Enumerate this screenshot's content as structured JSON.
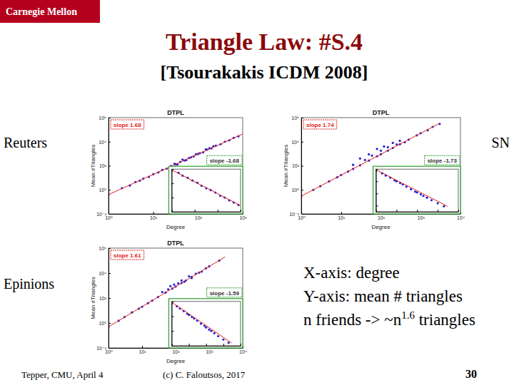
{
  "slide": {
    "logo": "Carnegie Mellon",
    "title": "Triangle Law: #S.4",
    "subtitle": "[Tsourakakis ICDM 2008]",
    "notes": [
      "X-axis: degree",
      "Y-axis: mean # triangles"
    ],
    "formula": {
      "text": "n friends -> ~n",
      "exponent": "1.6",
      "tail": " triangles"
    },
    "footer": {
      "left": "Tepper, CMU, April 4",
      "center": "(c) C. Faloutsos, 2017",
      "page": 30
    }
  },
  "chart_data": [
    {
      "type": "scatter",
      "panel_label": "Reuters",
      "title": "DTPL",
      "xlabel": "Degree",
      "ylabel": "Mean #Triangles",
      "log": true,
      "xlim": [
        1,
        1000
      ],
      "ylim": [
        0.01,
        1000000
      ],
      "xticks": [
        {
          "value": 1,
          "label": "10⁰"
        },
        {
          "value": 10,
          "label": "10¹"
        },
        {
          "value": 100,
          "label": "10²"
        },
        {
          "value": 1000,
          "label": "10³"
        }
      ],
      "yticks": [
        {
          "value": 0.01,
          "label": "10⁻²"
        },
        {
          "value": 1,
          "label": "10⁰"
        },
        {
          "value": 100,
          "label": "10²"
        },
        {
          "value": 10000,
          "label": "10⁴"
        },
        {
          "value": 1000000,
          "label": "10⁶"
        }
      ],
      "annotations": [
        {
          "text": "slope 1.68",
          "color": "#e02020"
        }
      ],
      "series": [
        {
          "type": "scatter",
          "marker": "dot",
          "color": "#2020d0",
          "x": [
            1,
            2,
            3,
            4,
            5,
            6,
            8,
            10,
            13,
            16,
            20,
            25,
            32,
            40,
            50,
            63,
            80,
            100,
            130,
            160,
            200,
            250,
            320,
            400,
            500,
            630,
            800,
            30,
            35,
            45,
            55,
            70,
            90,
            110,
            150,
            180,
            220
          ],
          "values": [
            0.4,
            1.4,
            2.3,
            4.5,
            5.8,
            8.5,
            12,
            20,
            28,
            45,
            58,
            95,
            130,
            210,
            270,
            440,
            600,
            960,
            1300,
            2200,
            2800,
            4600,
            6200,
            10000,
            13000,
            21000,
            28000,
            150,
            130,
            330,
            300,
            500,
            900,
            1100,
            2300,
            2900,
            4200
          ]
        },
        {
          "type": "line",
          "line_style": "solid",
          "color": "#e02020",
          "x": [
            1,
            1000
          ],
          "values": [
            0.4,
            43900
          ]
        }
      ],
      "inset": {
        "type": "scatter",
        "log": true,
        "tick_labels": false,
        "xlim": [
          1,
          1000
        ],
        "ylim": [
          1e-06,
          1
        ],
        "xticks": [
          1,
          10,
          100,
          1000
        ],
        "yticks": [
          1e-06,
          0.0001,
          0.01,
          1
        ],
        "annotations": [
          {
            "text": "slope -1.68",
            "color": "#2ca02c"
          }
        ],
        "series": [
          {
            "type": "scatter",
            "marker": "dot",
            "color": "#2020d0",
            "x": [
              1,
              2,
              3,
              5,
              8,
              13,
              20,
              32,
              50,
              80,
              130,
              200,
              320,
              500,
              800
            ],
            "values": [
              0.6,
              0.3,
              0.12,
              0.06,
              0.025,
              0.012,
              0.0045,
              0.002,
              0.0011,
              0.0005,
              0.00018,
              0.0001,
              4e-05,
              2e-05,
              9e-06
            ]
          },
          {
            "type": "line",
            "line_style": "solid",
            "color": "#e02020",
            "x": [
              1,
              1000
            ],
            "values": [
              0.8,
              7.3e-06
            ]
          }
        ]
      }
    },
    {
      "type": "scatter",
      "panel_label": "SN",
      "title": "DTPL",
      "xlabel": "Degree",
      "ylabel": "Mean #Triangles",
      "log": true,
      "xlim": [
        1,
        10000
      ],
      "ylim": [
        0.01,
        1000000
      ],
      "xticks": [
        {
          "value": 1,
          "label": "10⁰"
        },
        {
          "value": 10,
          "label": "10¹"
        },
        {
          "value": 100,
          "label": "10²"
        },
        {
          "value": 1000,
          "label": "10³"
        },
        {
          "value": 10000,
          "label": "10⁴"
        }
      ],
      "yticks": [
        {
          "value": 0.01,
          "label": "10⁻²"
        },
        {
          "value": 1,
          "label": "10⁰"
        },
        {
          "value": 100,
          "label": "10²"
        },
        {
          "value": 10000,
          "label": "10⁴"
        },
        {
          "value": 1000000,
          "label": "10⁶"
        }
      ],
      "annotations": [
        {
          "text": "slope 1.74",
          "color": "#e02020"
        }
      ],
      "series": [
        {
          "type": "scatter",
          "marker": "dot",
          "color": "#2020d0",
          "x": [
            1,
            2,
            3,
            5,
            8,
            10,
            15,
            20,
            30,
            50,
            80,
            100,
            150,
            200,
            300,
            500,
            800,
            1000,
            1500,
            2000,
            3000,
            20,
            30,
            40,
            50,
            60,
            80,
            100,
            120,
            150,
            200,
            250,
            300,
            400
          ],
          "values": [
            0.3,
            1,
            2,
            5,
            11,
            17,
            33,
            55,
            110,
            270,
            610,
            900,
            1800,
            3000,
            6100,
            15000,
            34000,
            50000,
            90000,
            170000,
            300000,
            120,
            400,
            300,
            900,
            700,
            2500,
            1800,
            4000,
            3500,
            8000,
            6000,
            12000,
            9000
          ]
        },
        {
          "type": "line",
          "line_style": "solid",
          "color": "#e02020",
          "x": [
            1,
            3000
          ],
          "values": [
            0.3,
            340000
          ]
        }
      ],
      "inset": {
        "type": "scatter",
        "log": true,
        "tick_labels": false,
        "xlim": [
          1,
          10000
        ],
        "ylim": [
          1e-07,
          1
        ],
        "xticks": [
          1,
          10,
          100,
          1000,
          10000
        ],
        "yticks": [
          1e-06,
          0.0001,
          0.01,
          1
        ],
        "annotations": [
          {
            "text": "slope -1.73",
            "color": "#2ca02c"
          }
        ],
        "series": [
          {
            "type": "scatter",
            "marker": "dot",
            "color": "#2020d0",
            "x": [
              1,
              2,
              3,
              5,
              8,
              10,
              15,
              20,
              30,
              50,
              80,
              100,
              150,
              200,
              300,
              500,
              1000,
              2000
            ],
            "values": [
              0.5,
              0.2,
              0.09,
              0.04,
              0.015,
              0.01,
              0.005,
              0.003,
              0.0013,
              0.0005,
              0.0002,
              0.00015,
              7e-05,
              4e-05,
              2e-05,
              8e-06,
              2.5e-06,
              8e-07
            ]
          },
          {
            "type": "line",
            "line_style": "solid",
            "color": "#e02020",
            "x": [
              1,
              3000
            ],
            "values": [
              0.8,
              7.8e-07
            ]
          }
        ]
      }
    },
    {
      "type": "scatter",
      "panel_label": "Epinions",
      "title": "DTPL",
      "xlabel": "Degree",
      "ylabel": "Mean #Triangles",
      "log": true,
      "xlim": [
        1,
        10000
      ],
      "ylim": [
        0.01,
        1000000
      ],
      "xticks": [
        {
          "value": 1,
          "label": "10⁰"
        },
        {
          "value": 10,
          "label": "10¹"
        },
        {
          "value": 100,
          "label": "10²"
        },
        {
          "value": 1000,
          "label": "10³"
        },
        {
          "value": 10000,
          "label": "10⁴"
        }
      ],
      "yticks": [
        {
          "value": 0.01,
          "label": "10⁻²"
        },
        {
          "value": 1,
          "label": "10⁰"
        },
        {
          "value": 100,
          "label": "10²"
        },
        {
          "value": 10000,
          "label": "10⁴"
        },
        {
          "value": 1000000,
          "label": "10⁶"
        }
      ],
      "annotations": [
        {
          "text": "slope 1.61",
          "color": "#e02020"
        }
      ],
      "series": [
        {
          "type": "scatter",
          "marker": "dot",
          "color": "#2020d0",
          "x": [
            1,
            2,
            3,
            5,
            8,
            10,
            15,
            20,
            30,
            50,
            80,
            100,
            150,
            200,
            300,
            500,
            800,
            1000,
            2000,
            40,
            60,
            70,
            90,
            120,
            150,
            180,
            250,
            300,
            400,
            600
          ],
          "values": [
            0.5,
            1.5,
            3,
            7,
            14,
            20,
            39,
            62,
            120,
            270,
            580,
            830,
            1600,
            2500,
            4900,
            11000,
            24000,
            34000,
            100000,
            300,
            500,
            900,
            1200,
            1500,
            2600,
            2000,
            5500,
            4000,
            9000,
            13000
          ]
        },
        {
          "type": "line",
          "line_style": "solid",
          "color": "#e02020",
          "x": [
            1,
            3000
          ],
          "values": [
            0.5,
            198000
          ]
        }
      ],
      "inset": {
        "type": "scatter",
        "log": true,
        "tick_labels": false,
        "xlim": [
          1,
          10000
        ],
        "ylim": [
          1e-06,
          1
        ],
        "xticks": [
          1,
          10,
          100,
          1000,
          10000
        ],
        "yticks": [
          1e-06,
          0.0001,
          0.01,
          1
        ],
        "annotations": [
          {
            "text": "slope -1.59",
            "color": "#2ca02c"
          }
        ],
        "series": [
          {
            "type": "scatter",
            "marker": "dot",
            "color": "#2020d0",
            "x": [
              1,
              2,
              3,
              5,
              8,
              10,
              15,
              20,
              30,
              50,
              80,
              100,
              150,
              200,
              300,
              500,
              1000,
              2000
            ],
            "values": [
              0.5,
              0.22,
              0.11,
              0.05,
              0.022,
              0.015,
              0.008,
              0.005,
              0.0025,
              0.001,
              0.0005,
              0.0003,
              0.00015,
              0.0001,
              5e-05,
              2e-05,
              7e-06,
              2.5e-06
            ]
          },
          {
            "type": "line",
            "line_style": "solid",
            "color": "#e02020",
            "x": [
              1,
              3000
            ],
            "values": [
              0.8,
              2.4e-06
            ]
          }
        ]
      }
    }
  ]
}
